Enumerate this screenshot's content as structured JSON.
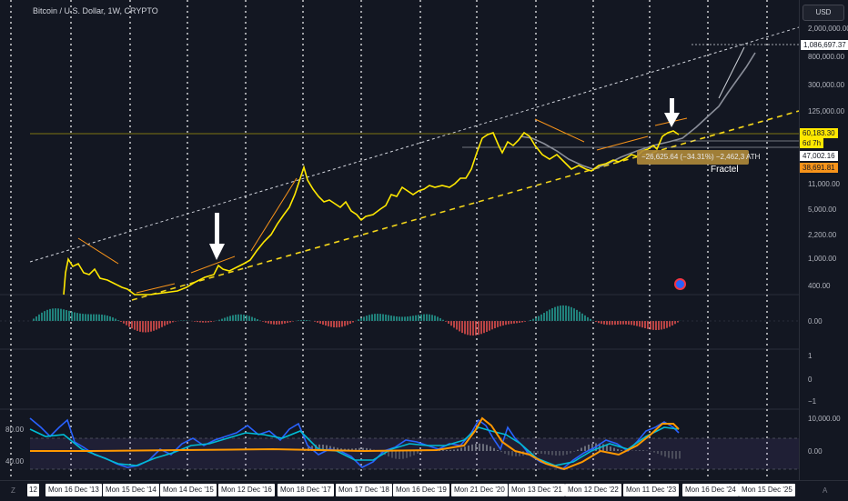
{
  "symbol_title": "Bitcoin / U.S. Dollar, 1W, CRYPTO",
  "currency_button": "USD",
  "price_scale_labels": [
    "2,000,000.00",
    "800,000.00",
    "300,000.00",
    "125,000.00",
    "11,000.00",
    "5,000.00",
    "2,200.00",
    "1,000.00",
    "400.00"
  ],
  "price_tags": {
    "ath_projection": "1,086,697.37",
    "current_price": "60,183.30",
    "countdown": "6d 7h",
    "level_1": "47,002.16",
    "level_2": "38,691.81"
  },
  "macd_scale": {
    "zero": "0.00"
  },
  "osc_scale": [
    "1",
    "0",
    "−1"
  ],
  "rsi_left_scale": [
    "80.00",
    "40.00"
  ],
  "rsi_right_scale": [
    "10,000.00",
    "0.00"
  ],
  "measure_label": "−26,625.64 (−34.31%) −2,462,3 ATH",
  "fractal_label": "Fractel",
  "time_ticks": [
    "Mon 16 Dec '13",
    "Mon 15 Dec '14",
    "Mon 14 Dec '15",
    "Mon 12 Dec '16",
    "Mon 18 Dec '17",
    "Mon 17 Dec '18",
    "Mon 16 Dec '19",
    "Mon 21 Dec '20",
    "Mon 13 Dec '21",
    "Mon 12 Dec '22",
    "Mon 11 Dec '23",
    "Mon 16 Dec '24",
    "Mon 15 Dec '25"
  ],
  "left_tick_fragment": "12",
  "corner_left": "Z",
  "corner_right": "A",
  "colors": {
    "background": "#131722",
    "price_line": "#ffe800",
    "fractal_line": "#8a8e99",
    "dashed_support": "#f2d41a",
    "macd_up": "#26a69a",
    "macd_down": "#ef5350",
    "rsi_blue": "#2962ff",
    "rsi_cyan": "#00bcd4",
    "rsi_orange": "#ff9800",
    "tag_yellow": "#ffe800",
    "tag_orange": "#f7931a"
  }
}
